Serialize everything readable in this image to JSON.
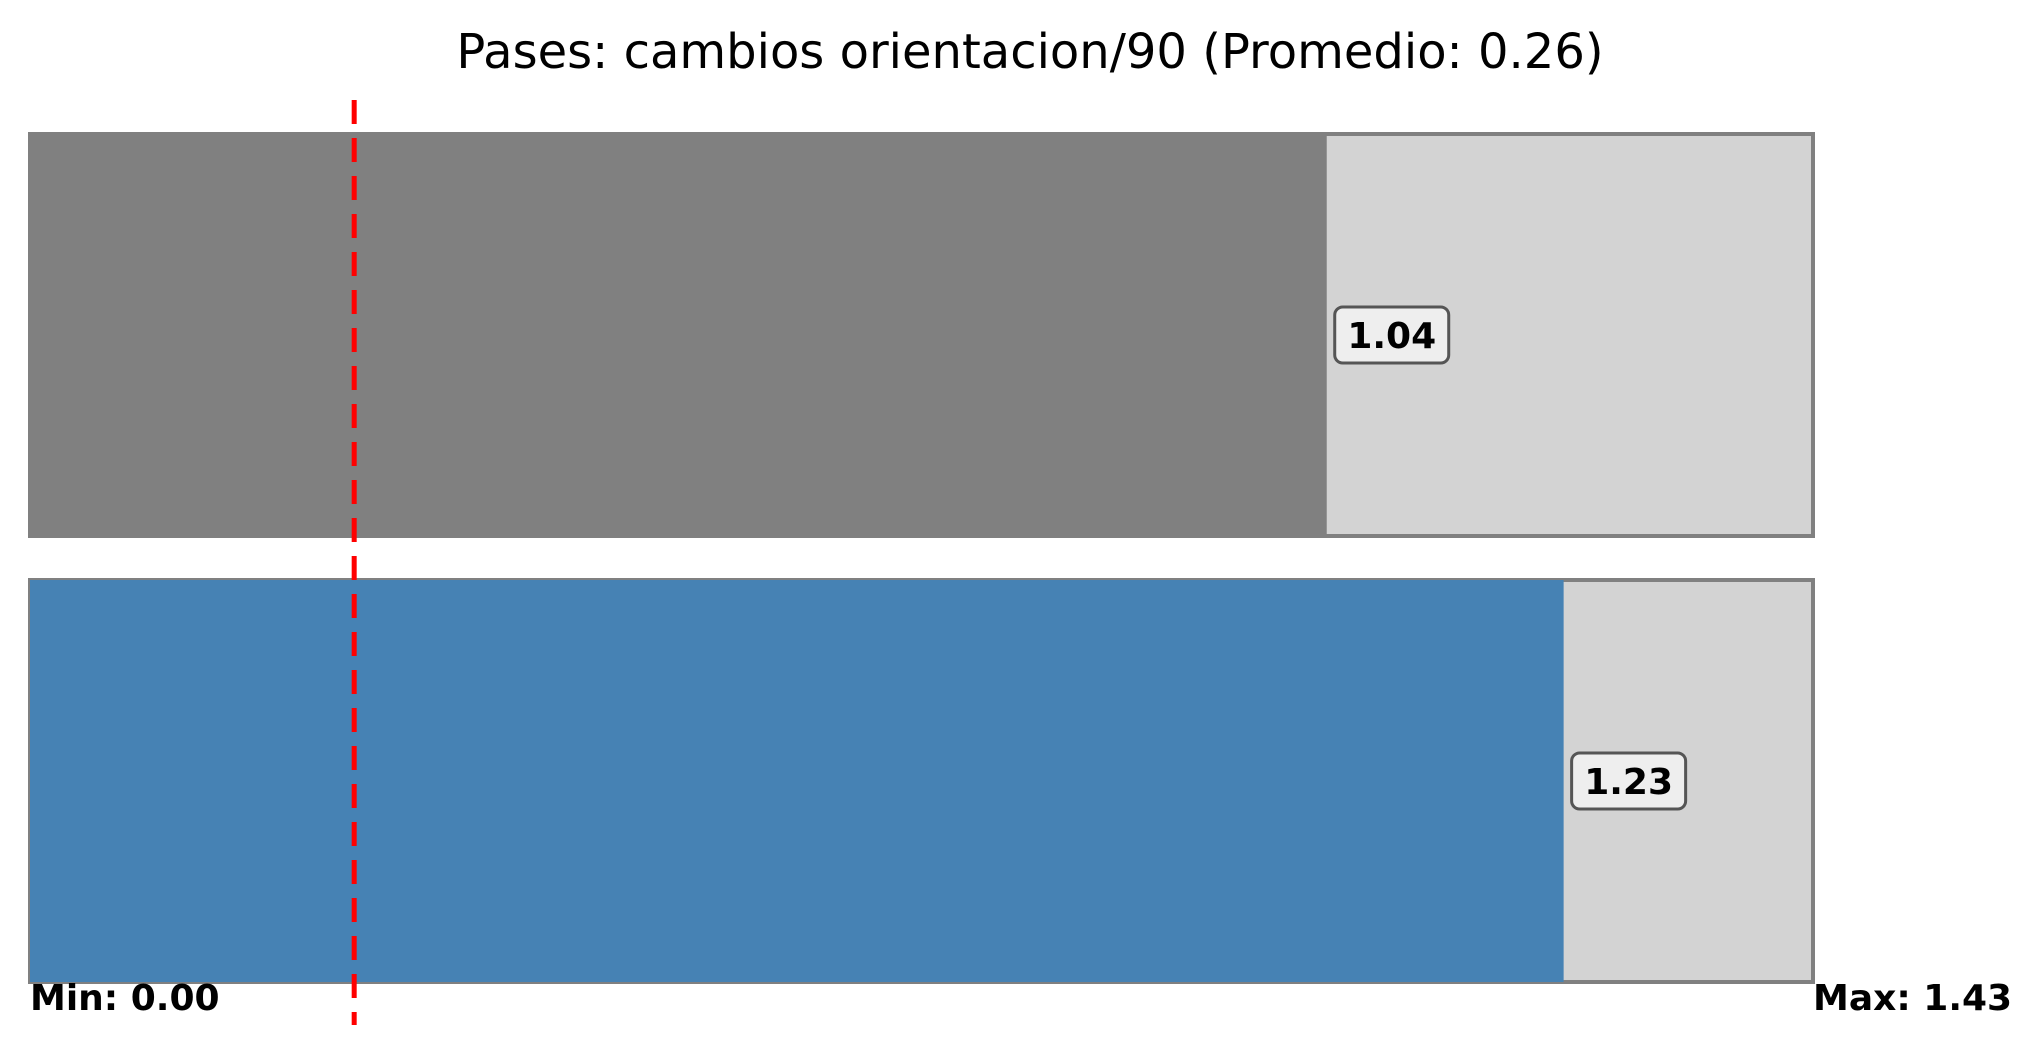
{
  "chart_data": {
    "type": "bar",
    "orientation": "horizontal",
    "title": "Pases: cambios orientacion/90 (Promedio: 0.26)",
    "xlim": [
      0.0,
      1.43
    ],
    "min_label": "Min: 0.00",
    "max_label": "Max: 1.43",
    "average": 0.26,
    "average_line_color": "#ff0000",
    "track_color": "#d3d3d3",
    "track_border_color": "#808080",
    "series": [
      {
        "value": 1.04,
        "label": "1.04",
        "color": "#808080"
      },
      {
        "value": 1.23,
        "label": "1.23",
        "color": "#4682b4"
      }
    ]
  }
}
